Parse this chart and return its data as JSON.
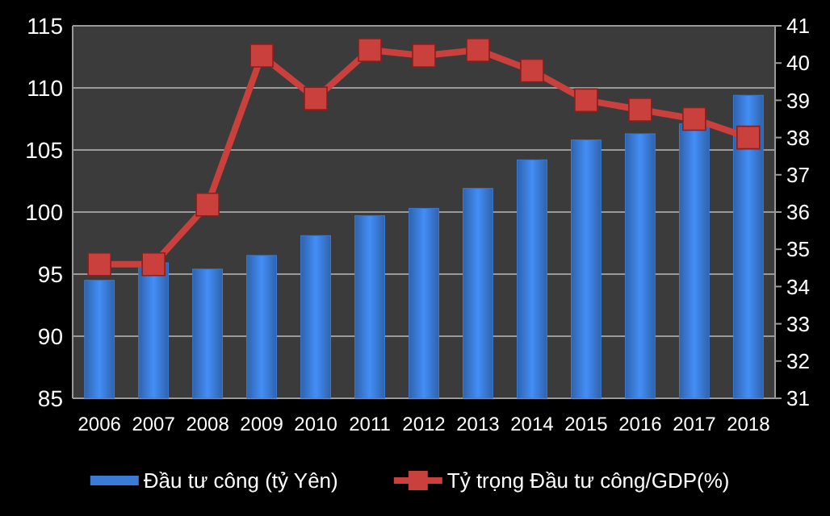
{
  "chart_data": {
    "type": "bar",
    "categories": [
      "2006",
      "2007",
      "2008",
      "2009",
      "2010",
      "2011",
      "2012",
      "2013",
      "2014",
      "2015",
      "2016",
      "2017",
      "2018"
    ],
    "series": [
      {
        "name": "Đầu tư công (tỷ Yên)",
        "color": "#3a7bd5",
        "values": [
          94.5,
          95.9,
          95.4,
          96.5,
          98.1,
          99.7,
          100.3,
          101.9,
          104.2,
          105.8,
          106.3,
          107.1,
          109.4
        ]
      },
      {
        "name": "Tỷ trọng Đầu tư công/GDP(%)",
        "type": "line",
        "axis": "y2",
        "color": "#c9403c",
        "marker": "square",
        "values": [
          34.6,
          34.6,
          36.2,
          40.2,
          39.05,
          40.35,
          40.2,
          40.35,
          39.8,
          39.0,
          38.75,
          38.5,
          38.0
        ]
      }
    ],
    "ylim": [
      85,
      115
    ],
    "yticks": [
      85,
      90,
      95,
      100,
      105,
      110,
      115
    ],
    "y2lim": [
      31,
      41
    ],
    "y2ticks": [
      31,
      32,
      33,
      34,
      35,
      36,
      37,
      38,
      39,
      40,
      41
    ],
    "grid": "y",
    "legend": "bottom"
  }
}
